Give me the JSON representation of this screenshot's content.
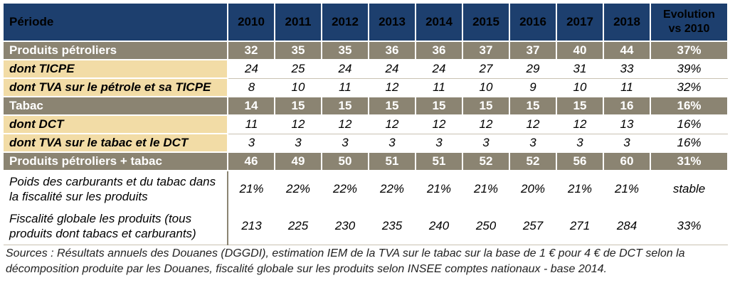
{
  "table": {
    "header": {
      "label": "Période",
      "years": [
        "2010",
        "2011",
        "2012",
        "2013",
        "2014",
        "2015",
        "2016",
        "2017",
        "2018"
      ],
      "evolution_line1": "Evolution",
      "evolution_line2": "vs 2010"
    },
    "rows": [
      {
        "kind": "total",
        "label": "Produits pétroliers",
        "values": [
          "32",
          "35",
          "35",
          "36",
          "36",
          "37",
          "37",
          "40",
          "44"
        ],
        "evolution": "37%"
      },
      {
        "kind": "sub",
        "label": "dont TICPE",
        "values": [
          "24",
          "25",
          "24",
          "24",
          "24",
          "27",
          "29",
          "31",
          "33"
        ],
        "evolution": "39%"
      },
      {
        "kind": "sub",
        "label": "dont TVA sur le pétrole et sa TICPE",
        "values": [
          "8",
          "10",
          "11",
          "12",
          "11",
          "10",
          "9",
          "10",
          "11"
        ],
        "evolution": "32%"
      },
      {
        "kind": "total",
        "label": "Tabac",
        "values": [
          "14",
          "15",
          "15",
          "15",
          "15",
          "15",
          "15",
          "15",
          "16"
        ],
        "evolution": "16%"
      },
      {
        "kind": "sub",
        "label": "dont DCT",
        "values": [
          "11",
          "12",
          "12",
          "12",
          "12",
          "12",
          "12",
          "12",
          "13"
        ],
        "evolution": "16%"
      },
      {
        "kind": "sub",
        "label": "dont TVA sur le tabac et le DCT",
        "values": [
          "3",
          "3",
          "3",
          "3",
          "3",
          "3",
          "3",
          "3",
          "3"
        ],
        "evolution": "16%"
      },
      {
        "kind": "total",
        "label": "Produits pétroliers + tabac",
        "values": [
          "46",
          "49",
          "50",
          "51",
          "51",
          "52",
          "52",
          "56",
          "60"
        ],
        "evolution": "31%"
      },
      {
        "kind": "note",
        "label": "Poids des carburants et du tabac dans la fiscalité sur les produits",
        "values": [
          "21%",
          "22%",
          "22%",
          "22%",
          "21%",
          "21%",
          "20%",
          "21%",
          "21%"
        ],
        "evolution": "stable"
      },
      {
        "kind": "note",
        "label": "Fiscalité globale les produits (tous produits dont tabacs et carburants)",
        "values": [
          "213",
          "225",
          "230",
          "235",
          "240",
          "250",
          "257",
          "271",
          "284"
        ],
        "evolution": "33%"
      }
    ]
  },
  "sources": "Sources : Résultats annuels des Douanes (DGGDI), estimation IEM de la TVA sur le tabac sur la base de 1 € pour 4 € de DCT selon la décomposition produite par les Douanes, fiscalité globale sur les produits selon INSEE comptes nationaux - base 2014.",
  "colors": {
    "header_bg": "#1d3f6e",
    "total_bg": "#8b8472",
    "sub_label_bg": "#f2dca6"
  }
}
